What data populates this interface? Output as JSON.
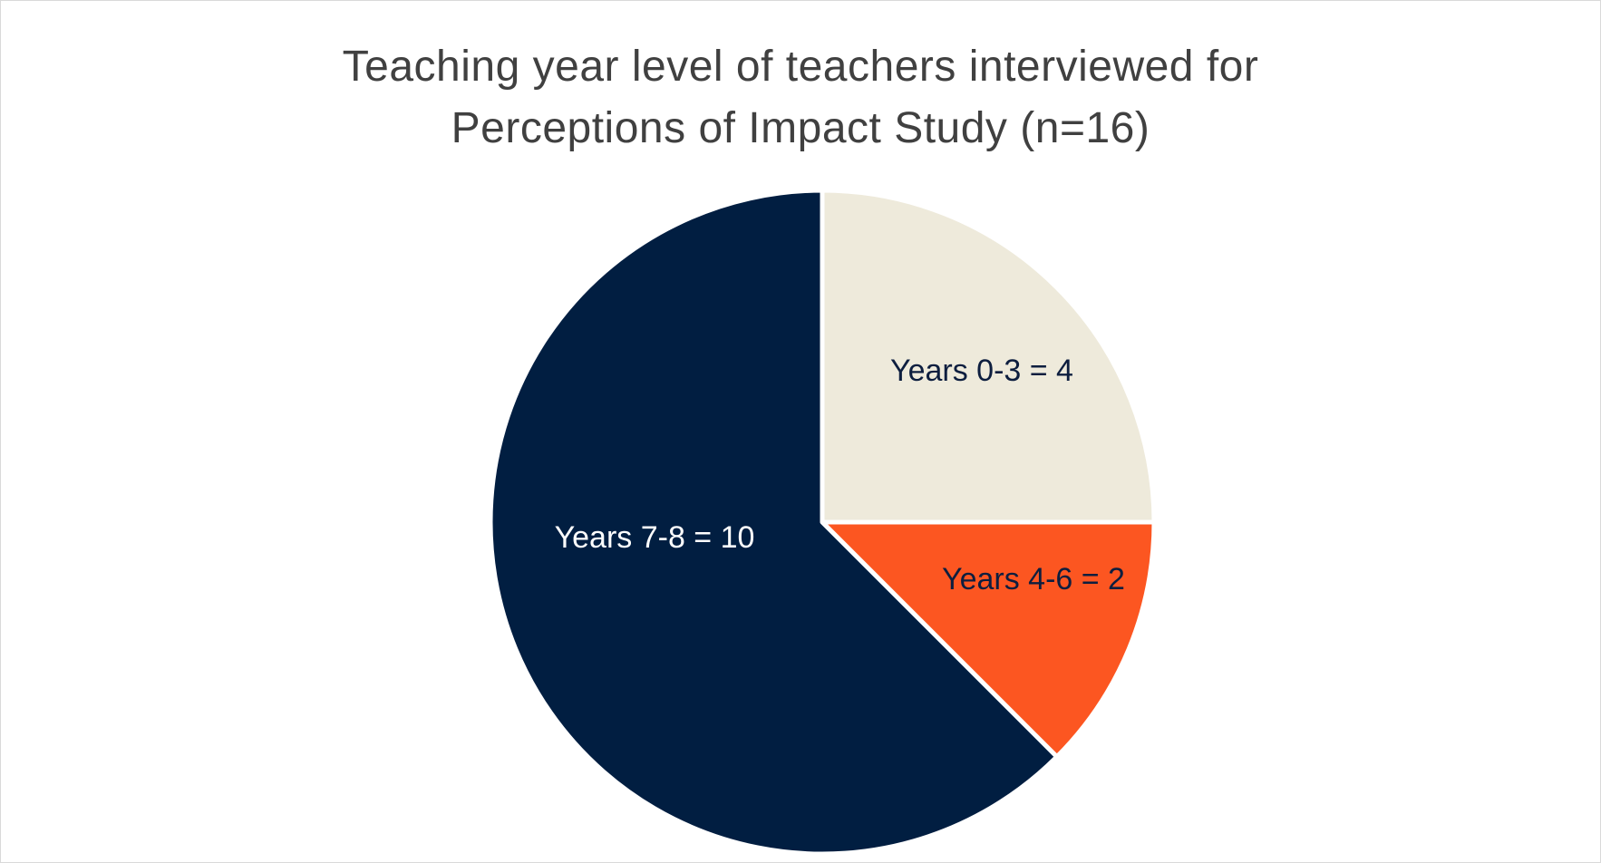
{
  "chart_data": {
    "type": "pie",
    "title_lines": [
      "Teaching year level of teachers interviewed for",
      "Perceptions of Impact Study (n=16)"
    ],
    "slices": [
      {
        "name": "Years 0-3",
        "value": 4,
        "label": "Years 0-3 = 4",
        "color": "#eeeadb",
        "label_color": "#0d1e3f"
      },
      {
        "name": "Years 4-6",
        "value": 2,
        "label": "Years 4-6 = 2",
        "color": "#fc5621",
        "label_color": "#0d1e3f"
      },
      {
        "name": "Years 7-8",
        "value": 10,
        "label": "Years 7-8 = 10",
        "color": "#011e41",
        "label_color": "#ffffff"
      }
    ],
    "total": 16,
    "start_angle_deg": 0,
    "direction": "clockwise",
    "legend": "none"
  }
}
